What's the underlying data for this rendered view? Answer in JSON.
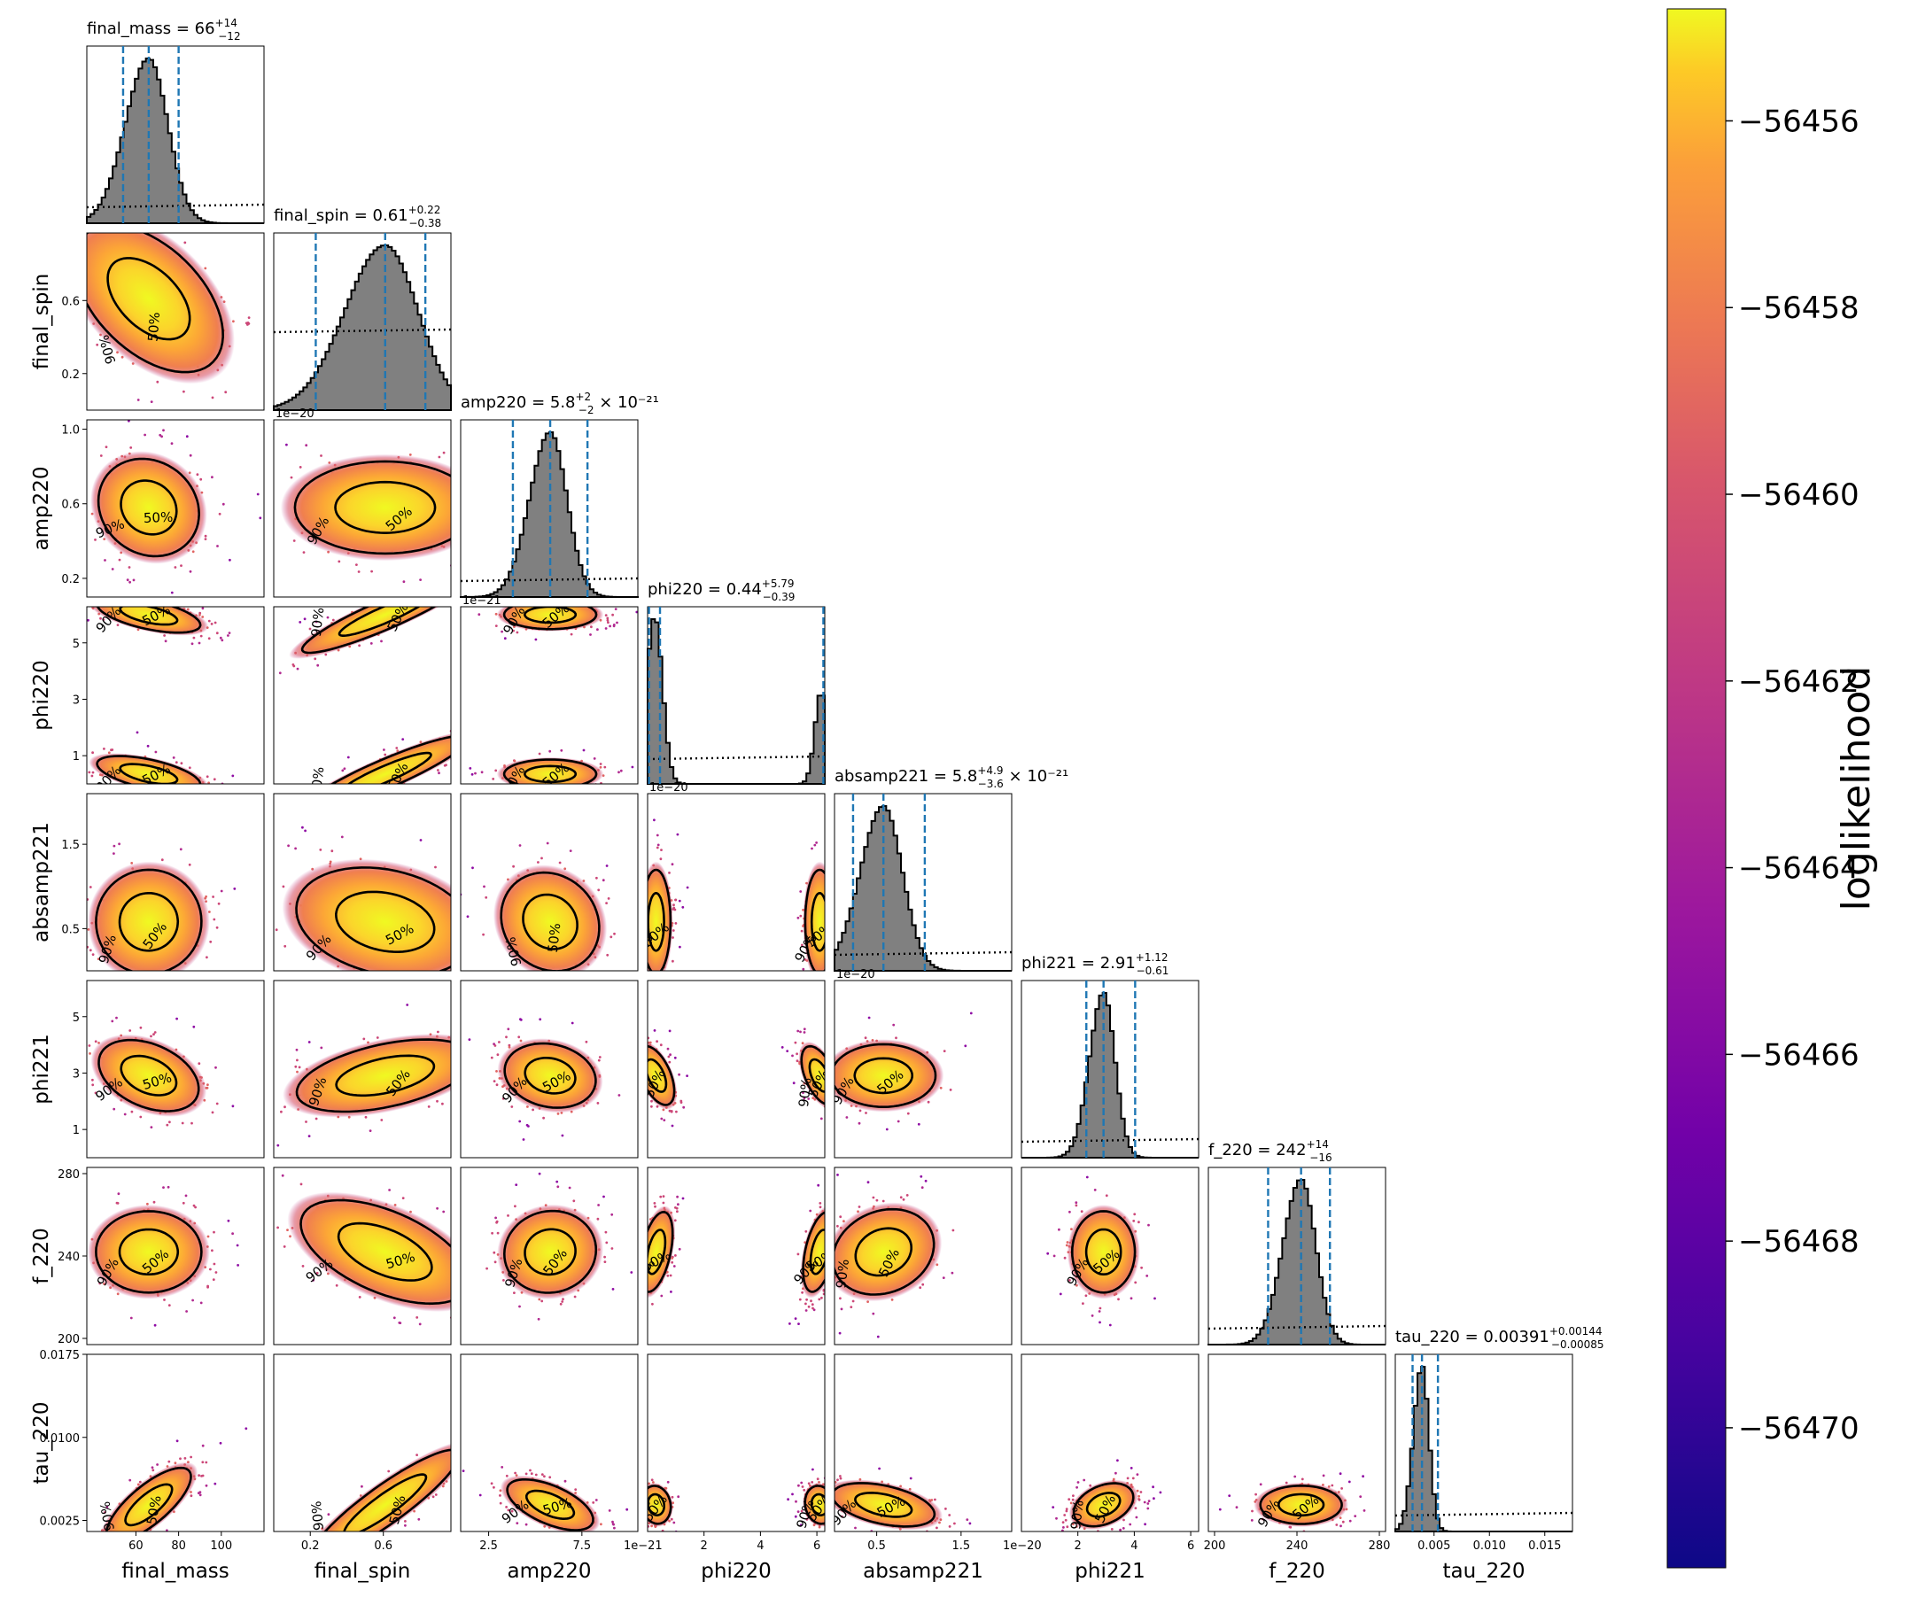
{
  "chart_data": {
    "type": "corner",
    "parameters": [
      {
        "name": "final_mass",
        "label": "final_mass",
        "range": [
          37,
          120
        ],
        "ticks": [
          60,
          80,
          100
        ],
        "tick_labels": [
          "60",
          "80",
          "100"
        ],
        "median": 66,
        "low": 54,
        "high": 80,
        "sigma": 10,
        "sci": "",
        "title_base": "final_mass = 66",
        "title_sup": "+14",
        "title_sub": "−12",
        "title_tail": ""
      },
      {
        "name": "final_spin",
        "label": "final_spin",
        "range": [
          0,
          0.97
        ],
        "ticks": [
          0.2,
          0.6
        ],
        "tick_labels": [
          "0.2",
          "0.6"
        ],
        "median": 0.61,
        "low": 0.23,
        "high": 0.83,
        "sigma": 0.2,
        "sci": "1e−20",
        "title_base": "final_spin = 0.61",
        "title_sup": "+0.22",
        "title_sub": "−0.38",
        "title_tail": ""
      },
      {
        "name": "amp220",
        "label": "amp220",
        "range": [
          0.1,
          1.05
        ],
        "ticks": [
          0.25,
          0.75
        ],
        "tick_labels": [
          "2.5",
          "7.5"
        ],
        "median": 0.58,
        "low": 0.38,
        "high": 0.78,
        "sigma": 0.1,
        "sci": "1e−21",
        "title_base": "amp220 = 5.8",
        "title_sup": "+2",
        "title_sub": "−2",
        "title_tail": " × 10⁻²¹"
      },
      {
        "name": "phi220",
        "label": "phi220",
        "range": [
          0,
          6.28
        ],
        "ticks": [
          2,
          4,
          6
        ],
        "tick_labels": [
          "2",
          "4",
          "6"
        ],
        "median": 0.44,
        "low": 0.05,
        "high": 6.23,
        "sigma": 0.3,
        "sci": "1e−20",
        "title_base": "phi220 = 0.44",
        "title_sup": "+5.79",
        "title_sub": "−0.39",
        "title_tail": ""
      },
      {
        "name": "absamp221",
        "label": "absamp221",
        "range": [
          0,
          2.1
        ],
        "ticks": [
          0.5,
          1.5
        ],
        "tick_labels": [
          "0.5",
          "1.5"
        ],
        "median": 0.58,
        "low": 0.22,
        "high": 1.07,
        "sigma": 0.25,
        "sci": "1e−20",
        "title_base": "absamp221 = 5.8",
        "title_sup": "+4.9",
        "title_sub": "−3.6",
        "title_tail": " × 10⁻²¹"
      },
      {
        "name": "phi221",
        "label": "phi221",
        "range": [
          0,
          6.28
        ],
        "ticks": [
          2,
          4,
          6
        ],
        "tick_labels": [
          "2",
          "4",
          "6"
        ],
        "median": 2.91,
        "low": 2.3,
        "high": 4.03,
        "sigma": 0.45,
        "sci": "",
        "title_base": "phi221 = 2.91",
        "title_sup": "+1.12",
        "title_sub": "−0.61",
        "title_tail": ""
      },
      {
        "name": "f_220",
        "label": "f_220",
        "range": [
          197,
          283
        ],
        "ticks": [
          200,
          240,
          280
        ],
        "tick_labels": [
          "200",
          "240",
          "280"
        ],
        "median": 242,
        "low": 226,
        "high": 256,
        "sigma": 8,
        "sci": "",
        "title_base": "f_220 = 242",
        "title_sup": "+14",
        "title_sub": "−16",
        "title_tail": ""
      },
      {
        "name": "tau_220",
        "label": "tau_220",
        "range": [
          0.0015,
          0.0175
        ],
        "ticks": [
          0.0025,
          0.01,
          0.0175
        ],
        "tick_labels": [
          "0.0025",
          "0.0100",
          "0.0175"
        ],
        "xticks": [
          0.005,
          0.01,
          0.015
        ],
        "xtick_labels": [
          "0.005",
          "0.010",
          "0.015"
        ],
        "median": 0.00391,
        "low": 0.00306,
        "high": 0.00535,
        "sigma": 0.0007,
        "sci": "",
        "title_base": "tau_220 = 0.00391",
        "title_sup": "+0.00144",
        "title_sub": "−0.00085",
        "title_tail": ""
      }
    ],
    "y_ticks": {
      "final_spin": {
        "ticks": [
          0.2,
          0.6
        ],
        "labels": [
          "0.2",
          "0.6"
        ]
      },
      "amp220": {
        "ticks": [
          0.2,
          0.6,
          1.0
        ],
        "labels": [
          "0.2",
          "0.6",
          "1.0"
        ]
      },
      "phi220": {
        "ticks": [
          1,
          3,
          5
        ],
        "labels": [
          "1",
          "3",
          "5"
        ]
      },
      "absamp221": {
        "ticks": [
          0.5,
          1.5
        ],
        "labels": [
          "0.5",
          "1.5"
        ]
      },
      "phi221": {
        "ticks": [
          1,
          3,
          5
        ],
        "labels": [
          "1",
          "3",
          "5"
        ]
      },
      "f_220": {
        "ticks": [
          200,
          240,
          280
        ],
        "labels": [
          "200",
          "240",
          "280"
        ]
      },
      "tau_220": {
        "ticks": [
          0.0025,
          0.01,
          0.0175
        ],
        "labels": [
          "0.0025",
          "0.0100",
          "0.0175"
        ]
      }
    },
    "contour_labels": [
      "50%",
      "90%"
    ],
    "colorbar": {
      "label": "loglikelihood",
      "colormap": "plasma",
      "range": [
        -56471.5,
        -56454.8
      ],
      "ticks": [
        -56456,
        -56458,
        -56460,
        -56462,
        -56464,
        -56466,
        -56468,
        -56470
      ],
      "tick_labels": [
        "−56456",
        "−56458",
        "−56460",
        "−56462",
        "−56464",
        "−56466",
        "−56468",
        "−56470"
      ]
    },
    "colors": {
      "histogram_fill": "#808080",
      "quantile_lines": "#1f77b4",
      "prior_line": "#000000",
      "contours": "#000000"
    }
  }
}
